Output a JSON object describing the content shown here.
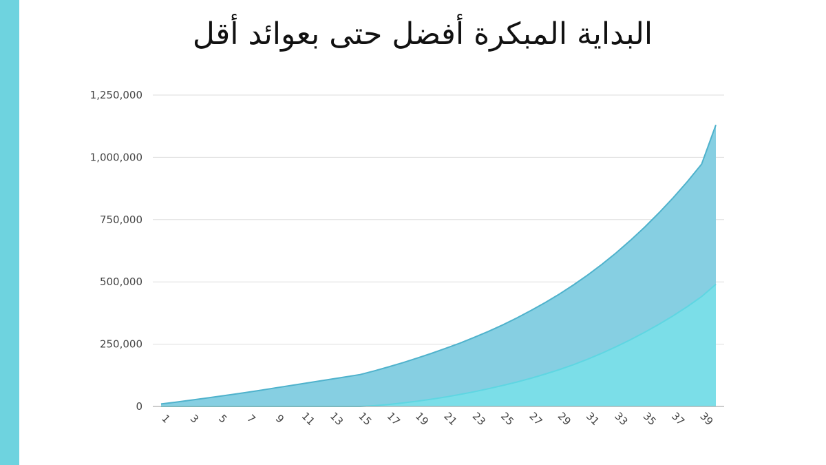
{
  "colors": {
    "side_bar": "#6ed3df",
    "grid": "#dddddd",
    "axis": "#999999",
    "series_total_fill": "#86cfe2",
    "series_total_line": "#4fb2cc",
    "series_gain_fill": "#79e0e9",
    "series_gain_line": "#5fd6e2"
  },
  "chart_data": {
    "type": "area",
    "title": "البداية المبكرة أفضل حتى بعوائد أقل",
    "xlabel": "",
    "ylabel": "",
    "ylim": [
      0,
      1250000
    ],
    "yticks": [
      0,
      250000,
      500000,
      750000,
      1000000,
      1250000
    ],
    "ytick_labels": [
      "0",
      "250,000",
      "500,000",
      "750,000",
      "1,000,000",
      "1,250,000"
    ],
    "xtick_labels": [
      "1",
      "3",
      "5",
      "7",
      "9",
      "11",
      "13",
      "15",
      "17",
      "19",
      "21",
      "23",
      "25",
      "27",
      "29",
      "31",
      "33",
      "35",
      "37",
      "39"
    ],
    "grid": true,
    "legend": "none",
    "x": [
      1,
      2,
      3,
      4,
      5,
      6,
      7,
      8,
      9,
      10,
      11,
      12,
      13,
      14,
      15,
      16,
      17,
      18,
      19,
      20,
      21,
      22,
      23,
      24,
      25,
      26,
      27,
      28,
      29,
      30,
      31,
      32,
      33,
      34,
      35,
      36,
      37,
      38,
      39,
      40
    ],
    "series": [
      {
        "values": [
          10000,
          17000,
          24500,
          32000,
          40000,
          48000,
          56500,
          65000,
          74000,
          83000,
          92000,
          101000,
          110000,
          119000,
          128000,
          143000,
          159000,
          176000,
          194000,
          213000,
          233000,
          254000,
          277000,
          301000,
          327000,
          355000,
          385000,
          417000,
          451000,
          488000,
          528000,
          571000,
          617000,
          667000,
          720000,
          777000,
          838000,
          903000,
          973000,
          1130000
        ]
      },
      {
        "values": [
          0,
          0,
          0,
          0,
          0,
          0,
          0,
          0,
          0,
          0,
          0,
          0,
          0,
          0,
          0,
          3000,
          8000,
          14000,
          21000,
          29000,
          38000,
          48000,
          59000,
          71000,
          84000,
          98000,
          113000,
          130000,
          148000,
          168000,
          190000,
          214000,
          240000,
          268000,
          298000,
          330000,
          364000,
          401000,
          441000,
          490000
        ]
      }
    ]
  }
}
